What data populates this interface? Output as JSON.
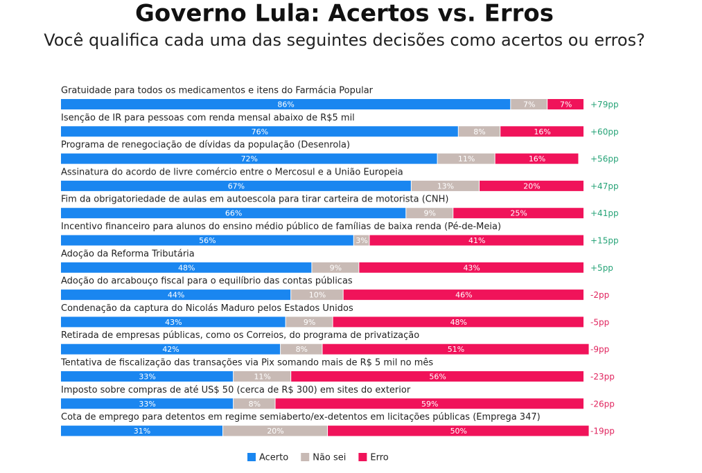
{
  "chart_data": {
    "type": "stacked-bar-horizontal",
    "title": "Governo Lula: Acertos vs. Erros",
    "subtitle": "Você qualifica cada uma das seguintes decisões como acertos ou erros?",
    "xlim": [
      0,
      100
    ],
    "categories": [
      "Gratuidade para todos os medicamentos e itens do Farmácia Popular",
      "Isenção de IR para pessoas com renda mensal abaixo de R$5 mil",
      "Programa de renegociação de dívidas da população (Desenrola)",
      "Assinatura do acordo de livre comércio entre o Mercosul e a União Europeia",
      "Fim da obrigatoriedade de aulas em autoescola para tirar carteira de motorista (CNH)",
      "Incentivo financeiro para alunos do ensino médio público de famílias de baixa renda (Pé-de-Meia)",
      "Adoção da Reforma Tributária",
      "Adoção do arcabouço fiscal para o equilíbrio das contas públicas",
      "Condenação da captura do Nicolás Maduro pelos Estados Unidos",
      "Retirada de empresas públicas, como os Correios, do programa de privatização",
      "Tentativa de fiscalização das transações via Pix somando mais de R$ 5 mil no mês",
      "Imposto sobre compras de até US$ 50 (cerca de R$ 300) em sites do exterior",
      "Cota de emprego para detentos em regime semiaberto/ex-detentos em licitações públicas (Emprega 347)"
    ],
    "series": [
      {
        "name": "Acerto",
        "color": "#1a86f0",
        "values": [
          86,
          76,
          72,
          67,
          66,
          56,
          48,
          44,
          43,
          42,
          33,
          33,
          31
        ],
        "value_labels": [
          "86%",
          "76%",
          "72%",
          "67%",
          "66%",
          "56%",
          "48%",
          "44%",
          "43%",
          "42%",
          "33%",
          "33%",
          "31%"
        ]
      },
      {
        "name": "Não sei",
        "color": "#c8bab5",
        "values": [
          7,
          8,
          11,
          13,
          9,
          3,
          9,
          10,
          9,
          8,
          11,
          8,
          20
        ],
        "value_labels": [
          "7%",
          "8%",
          "11%",
          "13%",
          "9%",
          "3%",
          "9%",
          "10%",
          "9%",
          "8%",
          "11%",
          "8%",
          "20%"
        ]
      },
      {
        "name": "Erro",
        "color": "#f0135a",
        "values": [
          7,
          16,
          16,
          20,
          25,
          41,
          43,
          46,
          48,
          51,
          56,
          59,
          50
        ],
        "value_labels": [
          "7%",
          "16%",
          "16%",
          "20%",
          "25%",
          "41%",
          "43%",
          "46%",
          "48%",
          "51%",
          "56%",
          "59%",
          "50%"
        ]
      }
    ],
    "net": [
      {
        "value": 79,
        "label": "+79pp"
      },
      {
        "value": 60,
        "label": "+60pp"
      },
      {
        "value": 56,
        "label": "+56pp"
      },
      {
        "value": 47,
        "label": "+47pp"
      },
      {
        "value": 41,
        "label": "+41pp"
      },
      {
        "value": 15,
        "label": "+15pp"
      },
      {
        "value": 5,
        "label": "+5pp"
      },
      {
        "value": -2,
        "label": "-2pp"
      },
      {
        "value": -5,
        "label": "-5pp"
      },
      {
        "value": -9,
        "label": "-9pp"
      },
      {
        "value": -23,
        "label": "-23pp"
      },
      {
        "value": -26,
        "label": "-26pp"
      },
      {
        "value": -19,
        "label": "-19pp"
      }
    ],
    "net_colors": {
      "positive": "#26a377",
      "negative": "#e0245e"
    }
  }
}
